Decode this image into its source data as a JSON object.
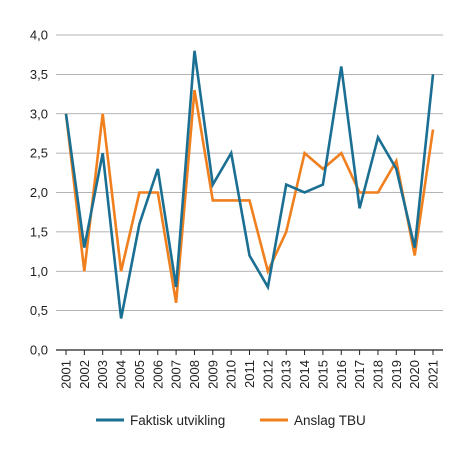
{
  "chart_data": {
    "type": "line",
    "x": [
      "2001",
      "2002",
      "2003",
      "2004",
      "2005",
      "2006",
      "2007",
      "2008",
      "2009",
      "2010",
      "2011",
      "2012",
      "2013",
      "2014",
      "2015",
      "2016",
      "2017",
      "2018",
      "2019",
      "2020",
      "2021"
    ],
    "series": [
      {
        "name": "Faktisk utvikling",
        "color": "#1a6f93",
        "values": [
          3.0,
          1.3,
          2.5,
          0.4,
          1.6,
          2.3,
          0.8,
          3.8,
          2.1,
          2.5,
          1.2,
          0.8,
          2.1,
          2.0,
          2.1,
          3.6,
          1.8,
          2.7,
          2.3,
          1.3,
          3.5
        ]
      },
      {
        "name": "Anslag TBU",
        "color": "#f07f1e",
        "values": [
          3.0,
          1.0,
          3.0,
          1.0,
          2.0,
          2.0,
          0.6,
          3.3,
          1.9,
          1.9,
          1.9,
          1.0,
          1.5,
          2.5,
          2.3,
          2.5,
          2.0,
          2.0,
          2.4,
          1.2,
          2.8
        ]
      }
    ],
    "y_ticks": [
      "0,0",
      "0,5",
      "1,0",
      "1,5",
      "2,0",
      "2,5",
      "3,0",
      "3,5",
      "4,0"
    ],
    "ylim": [
      0,
      4
    ],
    "title": "",
    "xlabel": "",
    "ylabel": "",
    "grid": true,
    "legend_position": "bottom"
  }
}
